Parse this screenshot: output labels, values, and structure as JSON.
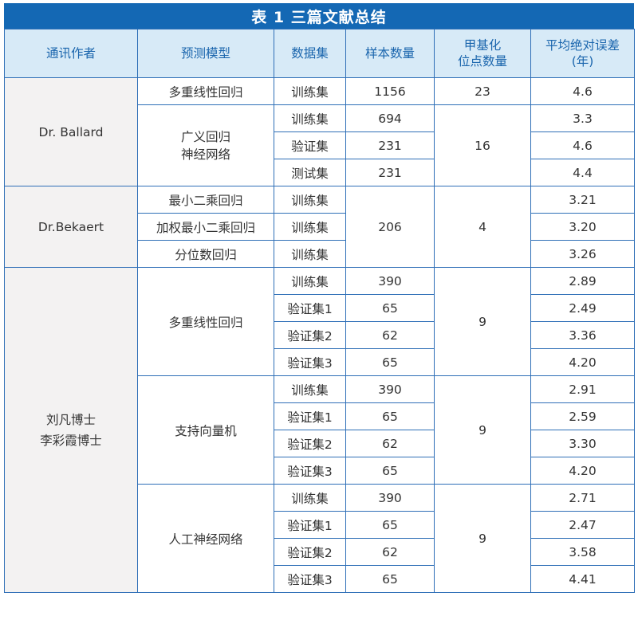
{
  "title": "表 1 三篇文献总结",
  "headers": [
    "通讯作者",
    "预测模型",
    "数据集",
    "样本数量",
    "甲基化\n位点数量",
    "平均绝对误差\n(年)"
  ],
  "authors": {
    "ballard": "Dr. Ballard",
    "bekaert": "Dr.Bekaert",
    "liu_li": "刘凡博士\n李彩霞博士"
  },
  "models": {
    "mlr": "多重线性回归",
    "grnn": "广义回归\n神经网络",
    "ols": "最小二乘回归",
    "wls": "加权最小二乘回归",
    "quantile": "分位数回归",
    "mlr2": "多重线性回归",
    "svm": "支持向量机",
    "ann": "人工神经网络"
  },
  "sites": {
    "ballard_mlr": "23",
    "ballard_grnn": "16",
    "bekaert": "4",
    "liu_mlr": "9",
    "liu_svm": "9",
    "liu_ann": "9"
  },
  "bekaert_samples": "206",
  "rows": [
    {
      "dataset": "训练集",
      "samples": "1156",
      "mae": "4.6"
    },
    {
      "dataset": "训练集",
      "samples": "694",
      "mae": "3.3"
    },
    {
      "dataset": "验证集",
      "samples": "231",
      "mae": "4.6"
    },
    {
      "dataset": "测试集",
      "samples": "231",
      "mae": "4.4"
    },
    {
      "dataset": "训练集",
      "mae": "3.21"
    },
    {
      "dataset": "训练集",
      "mae": "3.20"
    },
    {
      "dataset": "训练集",
      "mae": "3.26"
    },
    {
      "dataset": "训练集",
      "samples": "390",
      "mae": "2.89"
    },
    {
      "dataset": "验证集1",
      "samples": "65",
      "mae": "2.49"
    },
    {
      "dataset": "验证集2",
      "samples": "62",
      "mae": "3.36"
    },
    {
      "dataset": "验证集3",
      "samples": "65",
      "mae": "4.20"
    },
    {
      "dataset": "训练集",
      "samples": "390",
      "mae": "2.91"
    },
    {
      "dataset": "验证集1",
      "samples": "65",
      "mae": "2.59"
    },
    {
      "dataset": "验证集2",
      "samples": "62",
      "mae": "3.30"
    },
    {
      "dataset": "验证集3",
      "samples": "65",
      "mae": "4.20"
    },
    {
      "dataset": "训练集",
      "samples": "390",
      "mae": "2.71"
    },
    {
      "dataset": "验证集1",
      "samples": "65",
      "mae": "2.47"
    },
    {
      "dataset": "验证集2",
      "samples": "62",
      "mae": "3.58"
    },
    {
      "dataset": "验证集3",
      "samples": "65",
      "mae": "4.41"
    }
  ]
}
